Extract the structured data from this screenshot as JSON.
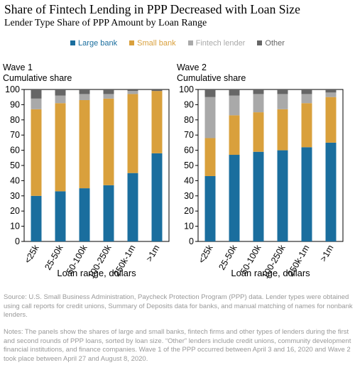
{
  "title": "Share of Fintech Lending in PPP Decreased with Loan Size",
  "subtitle": "Lender Type Share of PPP Amount by Loan Range",
  "legend": [
    {
      "label": "Large bank",
      "color": "#1a6e9e"
    },
    {
      "label": "Small bank",
      "color": "#d9a03c"
    },
    {
      "label": "Fintech lender",
      "color": "#a9a9a9"
    },
    {
      "label": "Other",
      "color": "#666666"
    }
  ],
  "source": "Source: U.S. Small Business Administration, Paycheck Protection Program (PPP) data. Lender types were obtained using call reports for credit unions, Summary of Deposits data for banks, and manual matching of names for nonbank lenders.",
  "notes": "Notes: The panels show the shares of large and small banks, fintech firms and other types of lenders during the first and second rounds of PPP loans, sorted by loan size. “Other” lenders include credit unions, community development financial institutions, and finance companies. Wave 1 of the PPP occurred between April 3 and 16, 2020 and Wave 2 took place between April 27 and August 8, 2020.",
  "chart_data": [
    {
      "type": "bar",
      "stacked": true,
      "title": "Wave 1",
      "ylabel": "Cumulative share",
      "xlabel": "Loan range, dollars",
      "ylim": [
        0,
        100
      ],
      "yticks": [
        0,
        10,
        20,
        30,
        40,
        50,
        60,
        70,
        80,
        90,
        100
      ],
      "categories": [
        "<25k",
        "25-50k",
        "50-100k",
        "100-250k",
        "250k-1m",
        ">1m"
      ],
      "series": [
        {
          "name": "Large bank",
          "color": "#1a6e9e",
          "values": [
            30,
            33,
            35,
            37,
            45,
            58
          ]
        },
        {
          "name": "Small bank",
          "color": "#d9a03c",
          "values": [
            57,
            58,
            58,
            57,
            52,
            41
          ]
        },
        {
          "name": "Fintech lender",
          "color": "#a9a9a9",
          "values": [
            7,
            5,
            4,
            3,
            2,
            0
          ]
        },
        {
          "name": "Other",
          "color": "#666666",
          "values": [
            6,
            4,
            3,
            3,
            1,
            1
          ]
        }
      ]
    },
    {
      "type": "bar",
      "stacked": true,
      "title": "Wave 2",
      "ylabel": "Cumulative share",
      "xlabel": "Loan range, dollars",
      "ylim": [
        0,
        100
      ],
      "yticks": [
        0,
        10,
        20,
        30,
        40,
        50,
        60,
        70,
        80,
        90,
        100
      ],
      "categories": [
        "<25k",
        "25-50k",
        "50-100k",
        "100-250k",
        "250k-1m",
        ">1m"
      ],
      "series": [
        {
          "name": "Large bank",
          "color": "#1a6e9e",
          "values": [
            43,
            57,
            59,
            60,
            62,
            65
          ]
        },
        {
          "name": "Small bank",
          "color": "#d9a03c",
          "values": [
            25,
            26,
            26,
            27,
            29,
            30
          ]
        },
        {
          "name": "Fintech lender",
          "color": "#a9a9a9",
          "values": [
            27,
            13,
            12,
            10,
            6,
            3
          ]
        },
        {
          "name": "Other",
          "color": "#666666",
          "values": [
            5,
            4,
            3,
            3,
            3,
            2
          ]
        }
      ]
    }
  ]
}
